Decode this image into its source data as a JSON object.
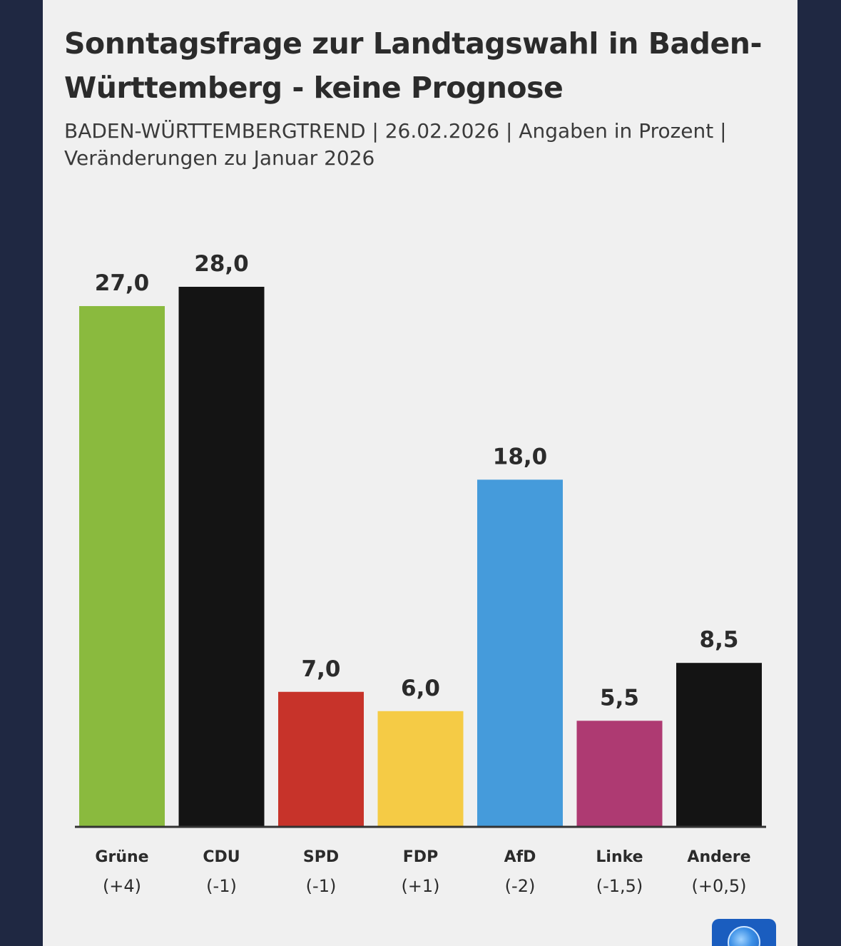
{
  "header": {
    "title": "Sonntagsfrage zur Landtagswahl in Baden-Württemberg - keine Prognose",
    "subtitle": "BADEN-WÜRTTEMBERGTREND | 26.02.2026 | Angaben in Prozent | Veränderungen zu Januar 2026"
  },
  "logo": {
    "icon": "globe-icon"
  },
  "chart_data": {
    "type": "bar",
    "title": "Sonntagsfrage zur Landtagswahl in Baden-Württemberg - keine Prognose",
    "subtitle": "BADEN-WÜRTTEMBERGTREND | 26.02.2026 | Angaben in Prozent | Veränderungen zu Januar 2026",
    "categories": [
      "Grüne",
      "CDU",
      "SPD",
      "FDP",
      "AfD",
      "Linke",
      "Andere"
    ],
    "changes": [
      "(+4)",
      "(-1)",
      "(-1)",
      "(+1)",
      "(-2)",
      "(-1,5)",
      "(+0,5)"
    ],
    "values": [
      27.0,
      28.0,
      7.0,
      6.0,
      18.0,
      5.5,
      8.5
    ],
    "value_labels": [
      "27,0",
      "28,0",
      "7,0",
      "6,0",
      "18,0",
      "5,5",
      "8,5"
    ],
    "colors": [
      "#8aba3e",
      "#141414",
      "#c7332a",
      "#f5cb45",
      "#459bdb",
      "#ae3a72",
      "#141414"
    ],
    "xlabel": "",
    "ylabel": "",
    "ylim": [
      0,
      28
    ],
    "grid": false,
    "legend": "none"
  }
}
